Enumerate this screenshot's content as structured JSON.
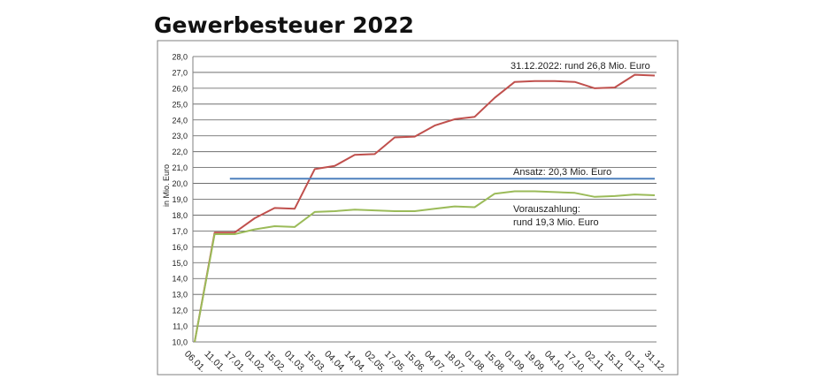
{
  "page_title": "Gewerbesteuer 2022",
  "chart_data": {
    "type": "line",
    "title": "Gewerbesteuer 2022",
    "xlabel": "",
    "ylabel": "in Mio. Euro",
    "ylim": [
      10,
      28
    ],
    "ytick_step": 1,
    "ytick_labels": [
      "10,0",
      "11,0",
      "12,0",
      "13,0",
      "14,0",
      "15,0",
      "16,0",
      "17,0",
      "18,0",
      "19,0",
      "20,0",
      "21,0",
      "22,0",
      "23,0",
      "24,0",
      "25,0",
      "26,0",
      "27,0",
      "28,0"
    ],
    "grid": true,
    "categories": [
      "06.01.",
      "11.01.",
      "17.01.",
      "01.02.",
      "15.02.",
      "01.03.",
      "15.03.",
      "04.04.",
      "14.04.",
      "02.05.",
      "17.05.",
      "15.06.",
      "04.07.",
      "18.07.",
      "01.08.",
      "15.08.",
      "01.09.",
      "19.09.",
      "04.10.",
      "17.10.",
      "02.11.",
      "15.11.",
      "01.12.",
      "31.12."
    ],
    "series": [
      {
        "color": "#c0504d",
        "values": [
          10.0,
          16.9,
          16.9,
          17.8,
          18.45,
          18.4,
          20.9,
          21.1,
          21.8,
          21.85,
          22.9,
          22.95,
          23.65,
          24.05,
          24.2,
          25.4,
          26.4,
          26.45,
          26.45,
          26.4,
          26.0,
          26.05,
          26.85,
          26.8
        ]
      },
      {
        "color": "#4f81bd",
        "values": [
          20.3,
          20.3,
          20.3,
          20.3,
          20.3,
          20.3,
          20.3,
          20.3,
          20.3,
          20.3,
          20.3,
          20.3,
          20.3,
          20.3,
          20.3,
          20.3,
          20.3,
          20.3,
          20.3,
          20.3,
          20.3,
          20.3,
          20.3,
          20.3
        ],
        "x_range": [
          "01.02.",
          "31.12."
        ]
      },
      {
        "color": "#9bbb59",
        "values": [
          10.0,
          16.8,
          16.8,
          17.1,
          17.3,
          17.25,
          18.2,
          18.25,
          18.35,
          18.3,
          18.25,
          18.25,
          18.4,
          18.55,
          18.5,
          19.35,
          19.5,
          19.5,
          19.45,
          19.4,
          19.15,
          19.2,
          19.3,
          19.25
        ]
      }
    ],
    "annotations": [
      {
        "text": "31.12.2022: rund 26,8 Mio. Euro",
        "anchor": "top-right"
      },
      {
        "text": "Ansatz: 20,3 Mio. Euro",
        "anchor": "above blue line, right"
      },
      {
        "text": "Vorauszahlung:",
        "anchor": "below green line, right"
      },
      {
        "text": "rund 19,3 Mio. Euro",
        "anchor": "below green line, right"
      }
    ]
  }
}
